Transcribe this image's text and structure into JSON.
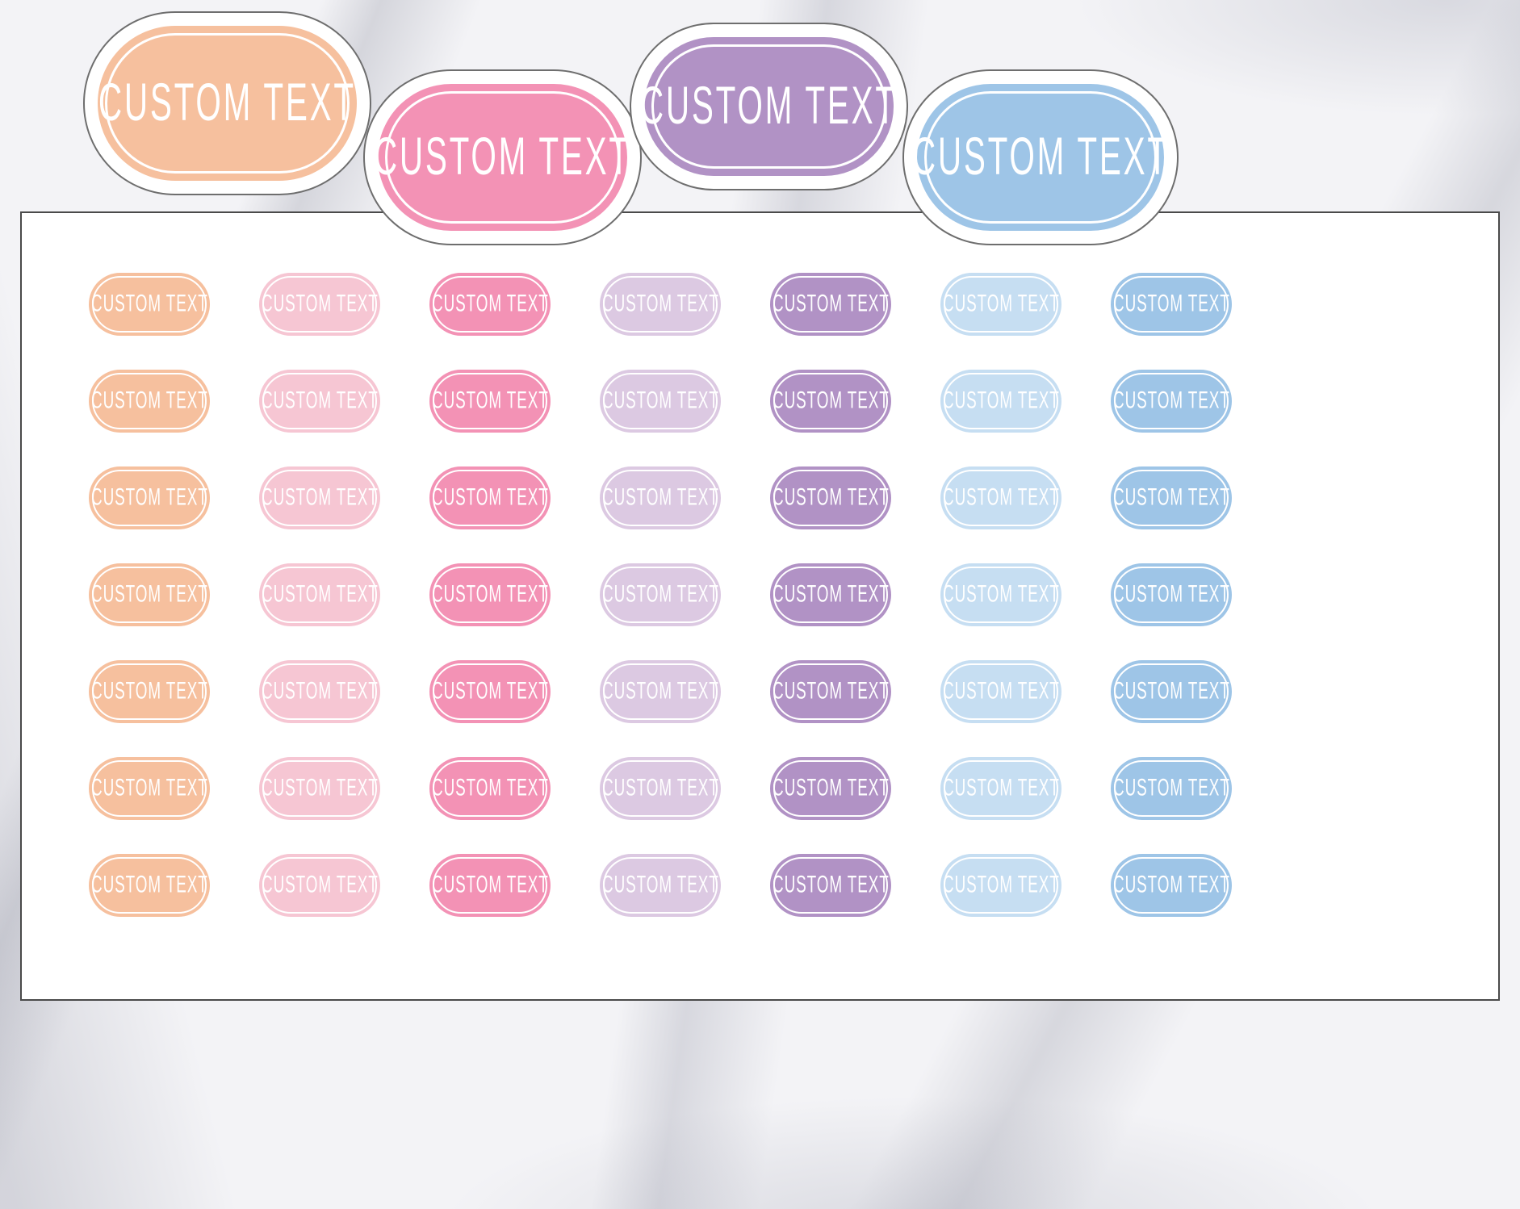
{
  "sticker_text": "CUSTOM TEXT",
  "text_color": "#ffffff",
  "top_stickers": [
    {
      "name": "peach",
      "color": "#f6c09e"
    },
    {
      "name": "pink",
      "color": "#f392b5"
    },
    {
      "name": "purple",
      "color": "#b192c5"
    },
    {
      "name": "blue",
      "color": "#9ec5e7"
    }
  ],
  "grid": {
    "rows": 7,
    "columns": [
      {
        "name": "peach",
        "color": "#f6c09e"
      },
      {
        "name": "light-pink",
        "color": "#f6c6d3"
      },
      {
        "name": "pink",
        "color": "#f392b5"
      },
      {
        "name": "lavender",
        "color": "#dcc9e2"
      },
      {
        "name": "purple",
        "color": "#b192c5"
      },
      {
        "name": "light-blue",
        "color": "#c6def2"
      },
      {
        "name": "blue",
        "color": "#9ec5e7"
      }
    ]
  }
}
